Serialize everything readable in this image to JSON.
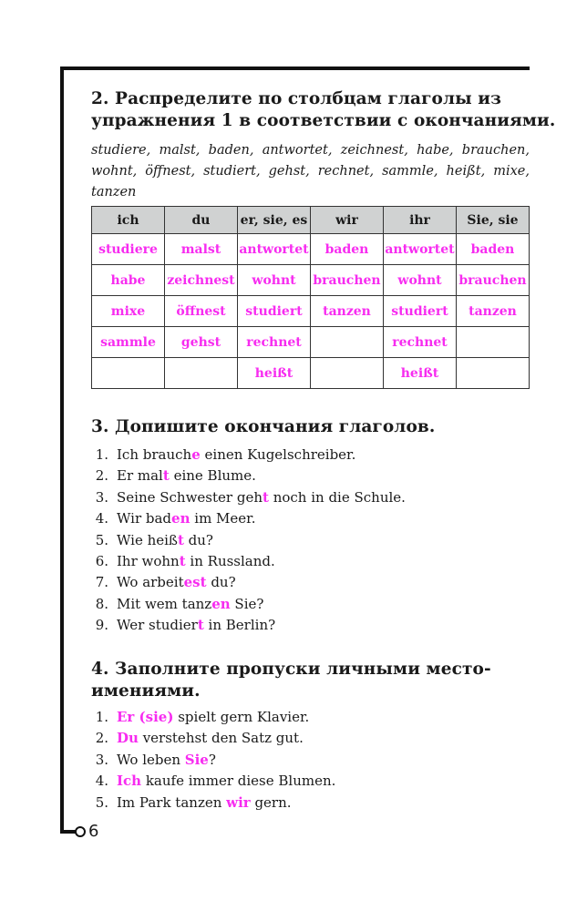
{
  "page_number": "6",
  "colors": {
    "answer": "#f72cf0",
    "header_bg": "#d0d2d2"
  },
  "ex2": {
    "title_line1": "2. Распределите по столбцам глаголы из",
    "title_line2": "упражнения 1 в соответствии с окончаниями.",
    "words": "studiere, malst, baden, antwortet, zeichnest, habe, brauchen, wohnt, öffnest, studiert, gehst, rechnet, sammle, heißt, mixe, tanzen",
    "headers": [
      "ich",
      "du",
      "er, sie, es",
      "wir",
      "ihr",
      "Sie, sie"
    ],
    "rows": [
      [
        "studiere",
        "malst",
        "antwortet",
        "baden",
        "antwortet",
        "baden"
      ],
      [
        "habe",
        "zeichnest",
        "wohnt",
        "brauchen",
        "wohnt",
        "brauchen"
      ],
      [
        "mixe",
        "öffnest",
        "studiert",
        "tanzen",
        "studiert",
        "tanzen"
      ],
      [
        "sammle",
        "gehst",
        "rechnet",
        "",
        "rechnet",
        ""
      ],
      [
        "",
        "",
        "heißt",
        "",
        "heißt",
        ""
      ]
    ]
  },
  "ex3": {
    "title": "3. Допишите окончания глаголов.",
    "items": [
      {
        "n": "1.",
        "pre": "Ich brauch",
        "hl": "e",
        "post": " einen Kugelschreiber."
      },
      {
        "n": "2.",
        "pre": "Er mal",
        "hl": "t",
        "post": " eine Blume."
      },
      {
        "n": "3.",
        "pre": "Seine Schwester geh",
        "hl": "t",
        "post": " noch in die Schule."
      },
      {
        "n": "4.",
        "pre": "Wir bad",
        "hl": "en",
        "post": " im Meer."
      },
      {
        "n": "5.",
        "pre": "Wie heiß",
        "hl": "t",
        "post": " du?"
      },
      {
        "n": "6.",
        "pre": "Ihr wohn",
        "hl": "t",
        "post": " in Russland."
      },
      {
        "n": "7.",
        "pre": "Wo arbeit",
        "hl": "est",
        "post": " du?"
      },
      {
        "n": "8.",
        "pre": "Mit wem tanz",
        "hl": "en",
        "post": " Sie?"
      },
      {
        "n": "9.",
        "pre": "Wer studier",
        "hl": "t",
        "post": " in Berlin?"
      }
    ]
  },
  "ex4": {
    "title_line1": "4. Заполните пропуски личными место-",
    "title_line2": "имениями.",
    "items": [
      {
        "n": "1.",
        "pre": "",
        "hl": "Er (sie)",
        "post": " spielt gern Klavier."
      },
      {
        "n": "2.",
        "pre": "",
        "hl": "Du",
        "post": " verstehst den Satz gut."
      },
      {
        "n": "3.",
        "pre": "Wo leben ",
        "hl": "Sie",
        "post": "?"
      },
      {
        "n": "4.",
        "pre": "",
        "hl": "Ich",
        "post": " kaufe immer diese Blumen."
      },
      {
        "n": "5.",
        "pre": "Im Park tanzen ",
        "hl": "wir",
        "post": " gern."
      }
    ]
  }
}
